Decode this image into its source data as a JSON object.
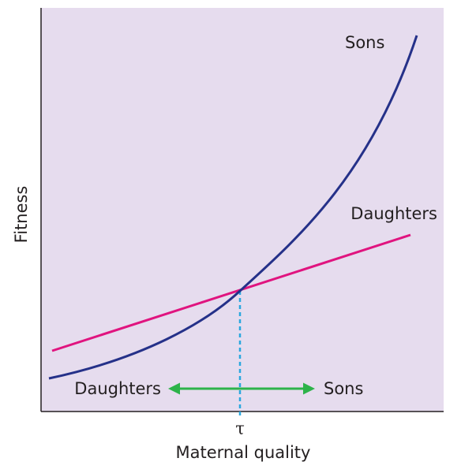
{
  "axes": {
    "y_label": "Fitness",
    "x_label": "Maternal quality",
    "x_tick": "τ"
  },
  "curves": [
    {
      "label": "Sons"
    },
    {
      "label": "Daughters"
    }
  ],
  "arrow": {
    "left_label": "Daughters",
    "right_label": "Sons"
  }
}
